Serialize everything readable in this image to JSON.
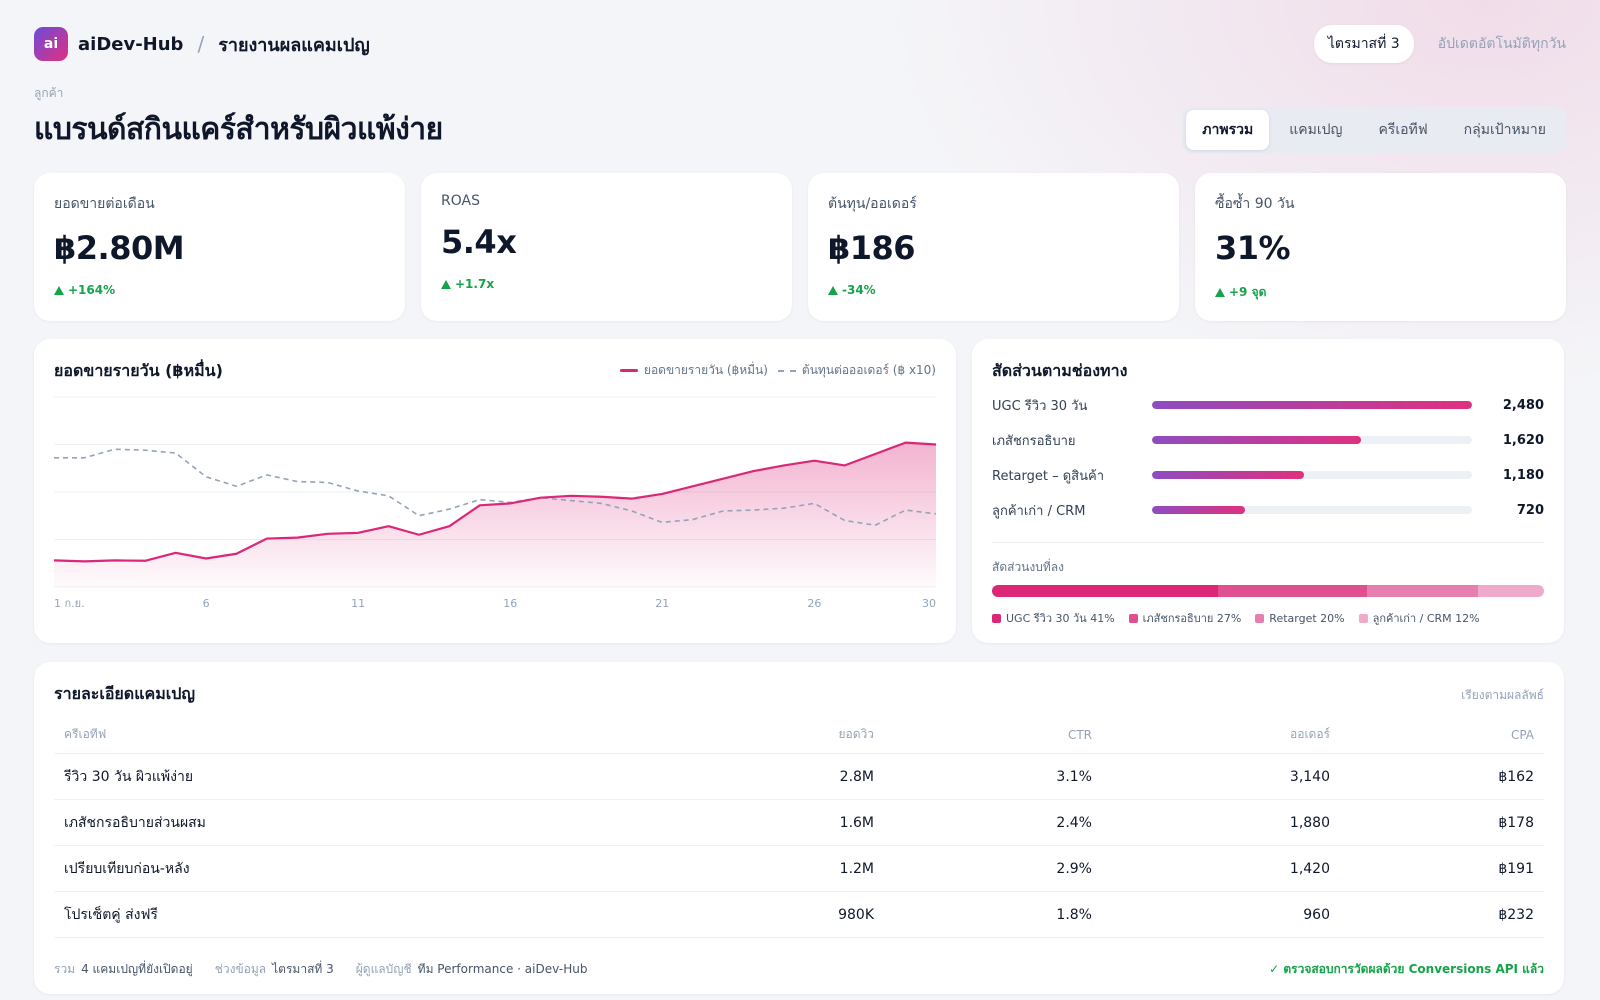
{
  "header": {
    "logo_text": "ai",
    "brand": "aiDev-Hub",
    "separator": "/",
    "page": "รายงานผลแคมเปญ",
    "quarter": "ไตรมาสที่ 3",
    "auto_update": "อัปเดตอัตโนมัติทุกวัน"
  },
  "client": {
    "label": "ลูกค้า",
    "name": "แบรนด์สกินแคร์สำหรับผิวแพ้ง่าย"
  },
  "tabs": [
    "ภาพรวม",
    "แคมเปญ",
    "ครีเอทีฟ",
    "กลุ่มเป้าหมาย"
  ],
  "kpis": [
    {
      "label": "ยอดขายต่อเดือน",
      "value": "฿2.80M",
      "delta": "+164%"
    },
    {
      "label": "ROAS",
      "value": "5.4x",
      "delta": "+1.7x"
    },
    {
      "label": "ต้นทุน/ออเดอร์",
      "value": "฿186",
      "delta": "-34%"
    },
    {
      "label": "ซื้อซ้ำ 90 วัน",
      "value": "31%",
      "delta": "+9 จุด"
    }
  ],
  "chart_data": {
    "type": "line",
    "title": "ยอดขายรายวัน (฿หมื่น)",
    "x": [
      1,
      2,
      3,
      4,
      5,
      6,
      7,
      8,
      9,
      10,
      11,
      12,
      13,
      14,
      15,
      16,
      17,
      18,
      19,
      20,
      21,
      22,
      23,
      24,
      25,
      26,
      27,
      28,
      29,
      30
    ],
    "x_tick_labels": [
      "1 ก.ย.",
      "6",
      "11",
      "16",
      "21",
      "26",
      "30"
    ],
    "x_tick_positions": [
      1,
      6,
      11,
      16,
      21,
      26,
      30
    ],
    "ylim": [
      0,
      100
    ],
    "grid": true,
    "legend": "top-right",
    "series": [
      {
        "name": "ยอดขายรายวัน (฿หมื่น)",
        "style": "solid-area",
        "color": "#db2777",
        "values": [
          14,
          13.5,
          14,
          13.8,
          18,
          15,
          17.5,
          25.5,
          26,
          28,
          28.5,
          32,
          27.5,
          32,
          43,
          44,
          47,
          48,
          47.5,
          46.5,
          49,
          53,
          57,
          61,
          64,
          66.5,
          64,
          70,
          76,
          75
        ]
      },
      {
        "name": "ต้นทุนต่อออเดอร์ (฿ x10)",
        "style": "dashed",
        "color": "#94a3b8",
        "values": [
          68,
          68,
          72.5,
          72,
          70.5,
          58,
          53,
          59,
          55.5,
          55,
          50.5,
          48,
          37.5,
          41,
          46,
          44.5,
          47,
          45.5,
          44,
          40,
          34,
          35.5,
          40,
          40.5,
          41.5,
          44,
          35,
          32.5,
          40.5,
          38.5
        ]
      }
    ]
  },
  "channel_mix": {
    "title": "สัดส่วนตามช่องทาง",
    "rows": [
      {
        "label": "UGC รีวิว 30 วัน",
        "value": "2,480",
        "share": 1.0
      },
      {
        "label": "เภสัชกรอธิบาย",
        "value": "1,620",
        "share": 0.653
      },
      {
        "label": "Retarget – ดูสินค้า",
        "value": "1,180",
        "share": 0.476
      },
      {
        "label": "ลูกค้าเก่า / CRM",
        "value": "720",
        "share": 0.29
      }
    ],
    "budget_label": "สัดส่วนงบที่ลง",
    "budget": [
      {
        "label": "UGC รีวิว 30 วัน 41%",
        "pct": 41,
        "color": "#db2777"
      },
      {
        "label": "เภสัชกรอธิบาย 27%",
        "pct": 27,
        "color": "#e0508f"
      },
      {
        "label": "Retarget 20%",
        "pct": 20,
        "color": "#e57fad"
      },
      {
        "label": "ลูกค้าเก่า / CRM 12%",
        "pct": 12,
        "color": "#eeaac8"
      }
    ]
  },
  "campaigns": {
    "title": "รายละเอียดแคมเปญ",
    "sort_label": "เรียงตามผลลัพธ์",
    "columns": [
      "ครีเอทีฟ",
      "ยอดวิว",
      "CTR",
      "ออเดอร์",
      "CPA"
    ],
    "rows": [
      [
        "รีวิว 30 วัน ผิวแพ้ง่าย",
        "2.8M",
        "3.1%",
        "3,140",
        "฿162"
      ],
      [
        "เภสัชกรอธิบายส่วนผสม",
        "1.6M",
        "2.4%",
        "1,880",
        "฿178"
      ],
      [
        "เปรียบเทียบก่อน-หลัง",
        "1.2M",
        "2.9%",
        "1,420",
        "฿191"
      ],
      [
        "โปรเซ็ตคู่ ส่งฟรี",
        "980K",
        "1.8%",
        "960",
        "฿232"
      ]
    ],
    "footer": {
      "total_key": "รวม",
      "total_value": "4 แคมเปญที่ยังเปิดอยู่",
      "range_key": "ช่วงข้อมูล",
      "range_value": "ไตรมาสที่ 3",
      "owner_key": "ผู้ดูแลบัญชี",
      "owner_value": "ทีม Performance · aiDev-Hub",
      "verify": "✓ ตรวจสอบการวัดผลด้วย Conversions API แล้ว"
    }
  }
}
